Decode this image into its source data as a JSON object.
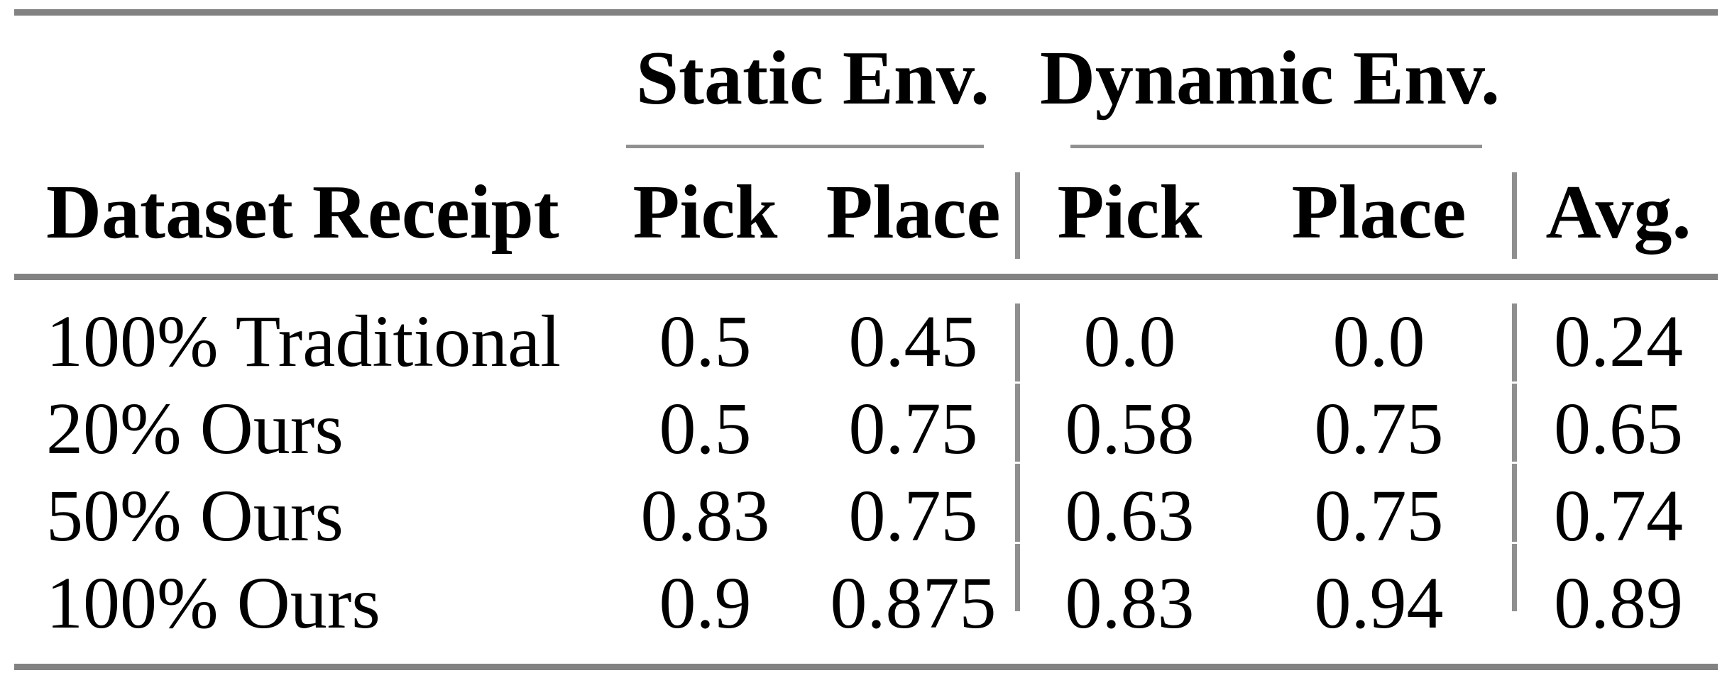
{
  "table": {
    "group_headers": [
      {
        "label": "Static Env."
      },
      {
        "label": "Dynamic Env."
      }
    ],
    "column_headers": {
      "row_label": "Dataset Receipt",
      "static": [
        "Pick",
        "Place"
      ],
      "dynamic": [
        "Pick",
        "Place"
      ],
      "avg": "Avg."
    },
    "rows": [
      {
        "label": "100% Traditional",
        "cells": [
          "0.5",
          "0.45",
          "0.0",
          "0.0",
          "0.24"
        ]
      },
      {
        "label": "20% Ours",
        "cells": [
          "0.5",
          "0.75",
          "0.58",
          "0.75",
          "0.65"
        ]
      },
      {
        "label": "50% Ours",
        "cells": [
          "0.83",
          "0.75",
          "0.63",
          "0.75",
          "0.74"
        ]
      },
      {
        "label": "100% Ours",
        "cells": [
          "0.9",
          "0.875",
          "0.83",
          "0.94",
          "0.89"
        ]
      }
    ]
  },
  "colors": {
    "background": "#ffffff",
    "text": "#000000",
    "rule_thick": "#828282",
    "rule_thin": "#919191",
    "rule_vertical": "#8f8f8f"
  }
}
